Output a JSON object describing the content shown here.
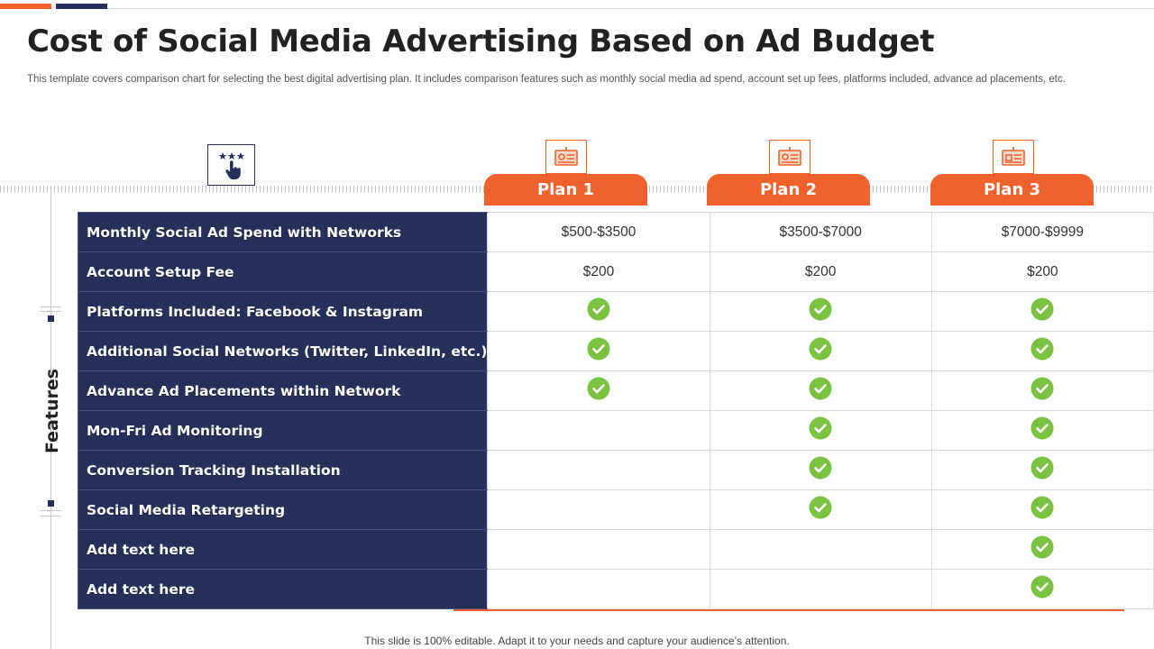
{
  "slide": {
    "title": "Cost of Social Media Advertising Based on Ad Budget",
    "subtitle": "This template covers comparison chart for selecting the best digital advertising plan. It includes comparison features such as monthly social media ad spend, account set up fees, platforms included, advance ad placements, etc.",
    "features_label": "Features",
    "footer": "This slide is 100% editable. Adapt it to your needs and capture your audience’s attention.",
    "colors": {
      "accent": "#f0622d",
      "navy": "#27305a",
      "check": "#7cc242"
    },
    "icons": {
      "header": "star-rating-hand-icon",
      "plan": "presentation-board-icon",
      "check": "check-circle-icon"
    }
  },
  "plans": [
    {
      "label": "Plan 1"
    },
    {
      "label": "Plan 2"
    },
    {
      "label": "Plan 3"
    }
  ],
  "rows": [
    {
      "feature": "Monthly Social Ad Spend with Networks",
      "values": [
        "$500-$3500",
        "$3500-$7000",
        "$7000-$9999"
      ]
    },
    {
      "feature": "Account Setup Fee",
      "values": [
        "$200",
        "$200",
        "$200"
      ]
    },
    {
      "feature": "Platforms Included: Facebook & Instagram",
      "values": [
        true,
        true,
        true
      ]
    },
    {
      "feature": "Additional Social Networks (Twitter, LinkedIn, etc.)",
      "values": [
        true,
        true,
        true
      ]
    },
    {
      "feature": "Advance Ad Placements within Network",
      "values": [
        true,
        true,
        true
      ]
    },
    {
      "feature": "Mon-Fri Ad Monitoring",
      "values": [
        false,
        true,
        true
      ]
    },
    {
      "feature": "Conversion Tracking Installation",
      "values": [
        false,
        true,
        true
      ]
    },
    {
      "feature": "Social Media Retargeting",
      "values": [
        false,
        true,
        true
      ]
    },
    {
      "feature": "Add text here",
      "values": [
        false,
        false,
        true
      ]
    },
    {
      "feature": "Add text here",
      "values": [
        false,
        false,
        true
      ]
    }
  ]
}
